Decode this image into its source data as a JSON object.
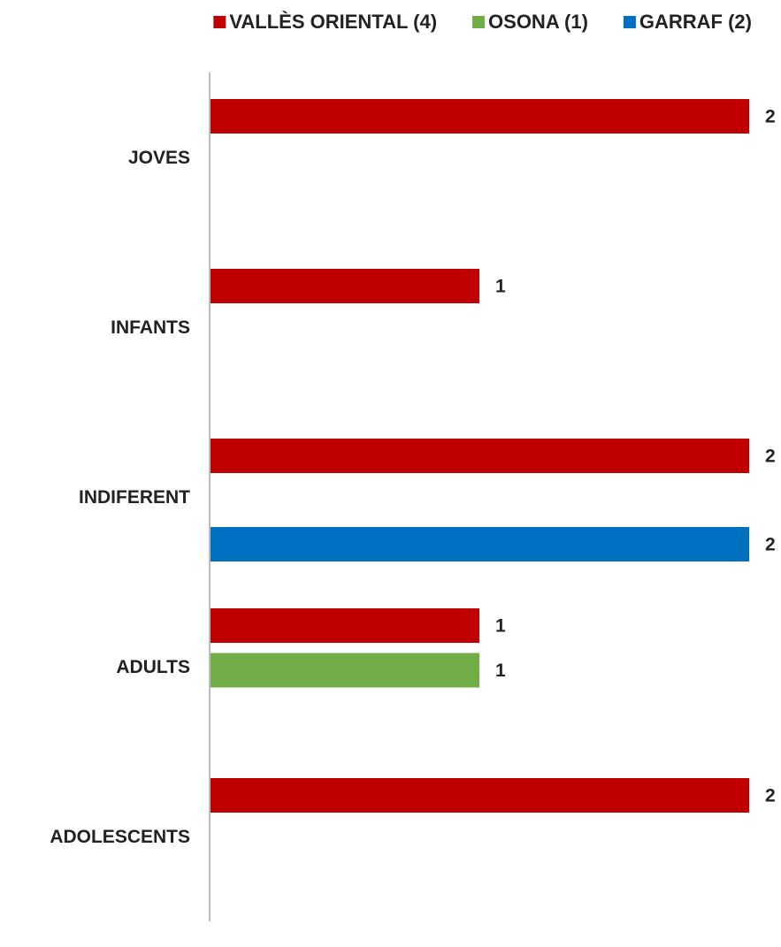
{
  "chart_data": {
    "type": "bar",
    "orientation": "horizontal",
    "categories": [
      "JOVES",
      "INFANTS",
      "INDIFERENT",
      "ADULTS",
      "ADOLESCENTS"
    ],
    "series": [
      {
        "name": "VALLÈS ORIENTAL (4)",
        "color": "#c00000",
        "values": [
          2,
          1,
          2,
          1,
          2
        ]
      },
      {
        "name": "OSONA (1)",
        "color": "#70ad47",
        "values": [
          null,
          null,
          null,
          1,
          null
        ]
      },
      {
        "name": "GARRAF (2)",
        "color": "#0070c0",
        "values": [
          null,
          null,
          2,
          null,
          null
        ]
      }
    ],
    "xlim": [
      0,
      2
    ],
    "legend_position": "top",
    "grid": false,
    "data_labels": true
  }
}
